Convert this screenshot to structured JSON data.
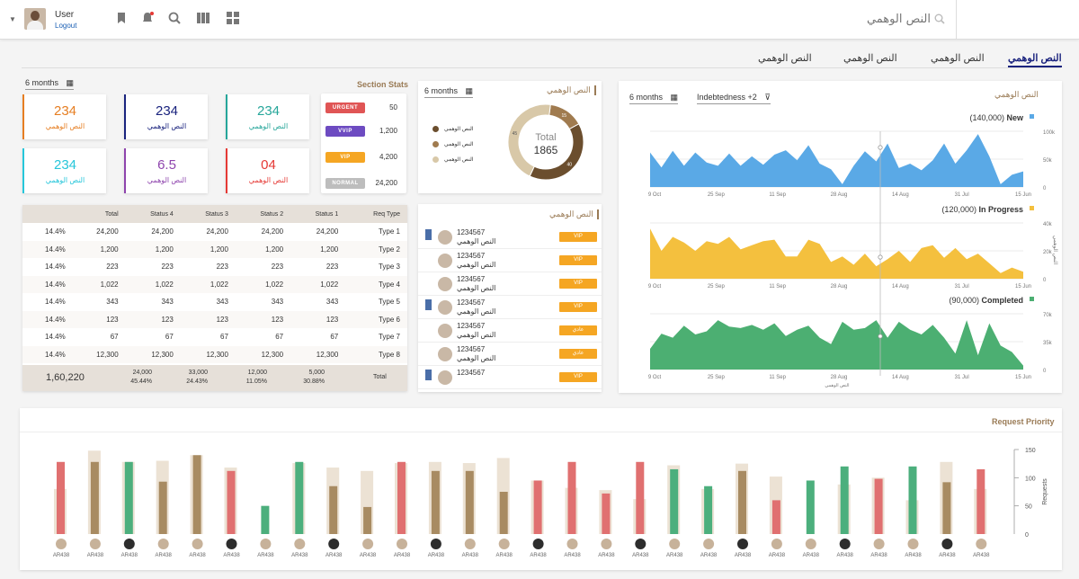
{
  "header": {
    "user_name": "User",
    "logout_label": "Logout",
    "search_placeholder": "النص الوهمي"
  },
  "tabs": [
    {
      "label": "النص الوهمي",
      "active": true
    },
    {
      "label": "النص الوهمي",
      "active": false
    },
    {
      "label": "النص الوهمي",
      "active": false
    },
    {
      "label": "النص الوهمي",
      "active": false
    }
  ],
  "section_stats": {
    "title": "Section Stats",
    "period": "6 months",
    "cards": [
      {
        "value": "234",
        "label": "النص الوهمي",
        "color": "#e67e22"
      },
      {
        "value": "234",
        "label": "النص الوهمي",
        "color": "#1a237e"
      },
      {
        "value": "234",
        "label": "النص الوهمي",
        "color": "#26a69a"
      },
      {
        "value": "234",
        "label": "النص الوهمي",
        "color": "#26c6da"
      },
      {
        "value": "6.5",
        "label": "النص الوهمي",
        "color": "#8e44ad"
      },
      {
        "value": "04",
        "label": "النص الوهمي",
        "color": "#e53935"
      }
    ],
    "priority": [
      {
        "label": "URGENT",
        "value": "50",
        "color": "#e05555"
      },
      {
        "label": "VVIP",
        "value": "1,200",
        "color": "#6d4bc1"
      },
      {
        "label": "VIP",
        "value": "4,200",
        "color": "#f5a623"
      },
      {
        "label": "NORMAL",
        "value": "24,200",
        "color": "#bdbdbd"
      }
    ]
  },
  "table": {
    "headers": [
      "Req Type",
      "Status 1",
      "Status 2",
      "Status 3",
      "Status 4",
      "Total",
      ""
    ],
    "rows": [
      [
        "Type 1",
        "24,200",
        "24,200",
        "24,200",
        "24,200",
        "24,200",
        "14.4%"
      ],
      [
        "Type 2",
        "1,200",
        "1,200",
        "1,200",
        "1,200",
        "1,200",
        "14.4%"
      ],
      [
        "Type 3",
        "223",
        "223",
        "223",
        "223",
        "223",
        "14.4%"
      ],
      [
        "Type 4",
        "1,022",
        "1,022",
        "1,022",
        "1,022",
        "1,022",
        "14.4%"
      ],
      [
        "Type 5",
        "343",
        "343",
        "343",
        "343",
        "343",
        "14.4%"
      ],
      [
        "Type 6",
        "123",
        "123",
        "123",
        "123",
        "123",
        "14.4%"
      ],
      [
        "Type 7",
        "67",
        "67",
        "67",
        "67",
        "67",
        "14.4%"
      ],
      [
        "Type 8",
        "12,300",
        "12,300",
        "12,300",
        "12,300",
        "12,300",
        "14.4%"
      ]
    ],
    "footer": {
      "label": "Total",
      "s1": "5,000",
      "s1p": "30.88%",
      "s2": "12,000",
      "s2p": "11.05%",
      "s3": "33,000",
      "s3p": "24.43%",
      "s4": "24,000",
      "s4p": "45.44%",
      "grand": "1,60,220"
    }
  },
  "donut": {
    "title": "النص الوهمي",
    "period": "6 months",
    "center_label": "Total",
    "center_value": "1865",
    "legend": [
      "النص الوهمي",
      "النص الوهمي",
      "النص الوهمي"
    ],
    "colors": [
      "#6b4e2e",
      "#a07b4f",
      "#d8c8a8"
    ],
    "chart_data": {
      "type": "pie",
      "labels": [
        "النص الوهمي",
        "النص الوهمي",
        "النص الوهمي"
      ],
      "values": [
        40,
        15,
        45
      ]
    }
  },
  "vip_list": {
    "title": "النص الوهمي",
    "items": [
      {
        "id": "1234567",
        "name": "النص الوهمي",
        "badge": "VIP",
        "bookmark": true
      },
      {
        "id": "1234567",
        "name": "النص الوهمي",
        "badge": "VIP",
        "bookmark": false
      },
      {
        "id": "1234567",
        "name": "النص الوهمي",
        "badge": "VIP",
        "bookmark": false
      },
      {
        "id": "1234567",
        "name": "النص الوهمي",
        "badge": "VIP",
        "bookmark": true
      },
      {
        "id": "1234567",
        "name": "النص الوهمي",
        "badge": "عادي",
        "bookmark": false
      },
      {
        "id": "1234567",
        "name": "النص الوهمي",
        "badge": "عادي",
        "bookmark": false
      },
      {
        "id": "1234567",
        "name": "",
        "badge": "VIP",
        "bookmark": true
      }
    ]
  },
  "timeline": {
    "title": "النص الوهمي",
    "period": "6 months",
    "filter": "Indebtedness +2",
    "y_axis_label": "النص الوهمي",
    "x_axis_label": "النص الوهمي",
    "x_ticks": [
      "9 Oct",
      "25 Sep",
      "11 Sep",
      "28 Aug",
      "14 Aug",
      "31 Jul",
      "15 Jun"
    ],
    "chart_data": [
      {
        "type": "area",
        "name": "New",
        "count": "(140,000)",
        "color": "#5aa9e6",
        "y_ticks": [
          "100k",
          "50k",
          "0"
        ],
        "ylim": [
          0,
          100000
        ],
        "values": [
          62000,
          35000,
          65000,
          38000,
          62000,
          44000,
          38000,
          60000,
          38000,
          55000,
          40000,
          58000,
          66000,
          48000,
          75000,
          42000,
          32000,
          5000,
          38000,
          64000,
          46000,
          78000,
          34000,
          42000,
          30000,
          48000,
          78000,
          42000,
          66000,
          95000,
          55000,
          5000,
          22000,
          28000
        ]
      },
      {
        "type": "area",
        "name": "In Progress",
        "count": "(120,000)",
        "color": "#f4c03e",
        "y_ticks": [
          "40k",
          "20k",
          "0"
        ],
        "ylim": [
          0,
          40000
        ],
        "values": [
          36000,
          20000,
          30000,
          26000,
          20000,
          27000,
          25000,
          30000,
          21000,
          24000,
          27000,
          28000,
          16000,
          16000,
          28000,
          25000,
          12000,
          16000,
          10000,
          18000,
          9000,
          14000,
          20000,
          12000,
          22000,
          24000,
          15000,
          22000,
          14000,
          18000,
          11000,
          4000,
          8000,
          5000
        ]
      },
      {
        "type": "area",
        "name": "Completed",
        "count": "(90,000)",
        "color": "#4caf72",
        "y_ticks": [
          "70k",
          "35k",
          "0"
        ],
        "ylim": [
          0,
          70000
        ],
        "values": [
          26000,
          45000,
          40000,
          55000,
          44000,
          48000,
          62000,
          54000,
          52000,
          56000,
          50000,
          58000,
          42000,
          50000,
          55000,
          40000,
          32000,
          60000,
          50000,
          52000,
          62000,
          40000,
          60000,
          50000,
          44000,
          56000,
          40000,
          20000,
          62000,
          18000,
          58000,
          30000,
          22000,
          5000
        ]
      }
    ]
  },
  "request_priority": {
    "title": "Request Priority",
    "y_label": "Requests",
    "y_ticks": [
      "150",
      "100",
      "50",
      "0"
    ],
    "chart_data": {
      "type": "bar",
      "ylim": [
        0,
        150
      ],
      "categories": [
        "AR438",
        "AR438",
        "AR438",
        "AR438",
        "AR438",
        "AR438",
        "AR438",
        "AR438",
        "AR438",
        "AR438",
        "AR438",
        "AR438",
        "AR438",
        "AR438",
        "AR438",
        "AR438",
        "AR438",
        "AR438",
        "AR438",
        "AR438",
        "AR438",
        "AR438",
        "AR438",
        "AR438",
        "AR438",
        "AR438",
        "AR438",
        "AR438"
      ],
      "series": [
        {
          "name": "background",
          "values": [
            80,
            148,
            128,
            130,
            140,
            118,
            0,
            126,
            118,
            112,
            126,
            128,
            126,
            135,
            95,
            82,
            78,
            62,
            122,
            80,
            125,
            102,
            0,
            88,
            100,
            60,
            128,
            80
          ]
        },
        {
          "name": "value",
          "values": [
            128,
            128,
            128,
            93,
            140,
            112,
            50,
            128,
            85,
            48,
            128,
            112,
            112,
            75,
            95,
            128,
            72,
            128,
            115,
            85,
            112,
            60,
            95,
            120,
            98,
            120,
            92,
            115
          ]
        }
      ],
      "colors": [
        "red",
        "brown",
        "green",
        "brown",
        "brown",
        "red",
        "green",
        "green",
        "brown",
        "brown",
        "red",
        "brown",
        "brown",
        "brown",
        "red",
        "red",
        "red",
        "red",
        "green",
        "green",
        "brown",
        "red",
        "green",
        "green",
        "red",
        "green",
        "brown",
        "red"
      ]
    }
  },
  "colors": {
    "red": "#e07070",
    "green": "#4caf7d",
    "brown": "#a88b62",
    "shadow": "#ece2d4",
    "accent": "#1a237e"
  }
}
